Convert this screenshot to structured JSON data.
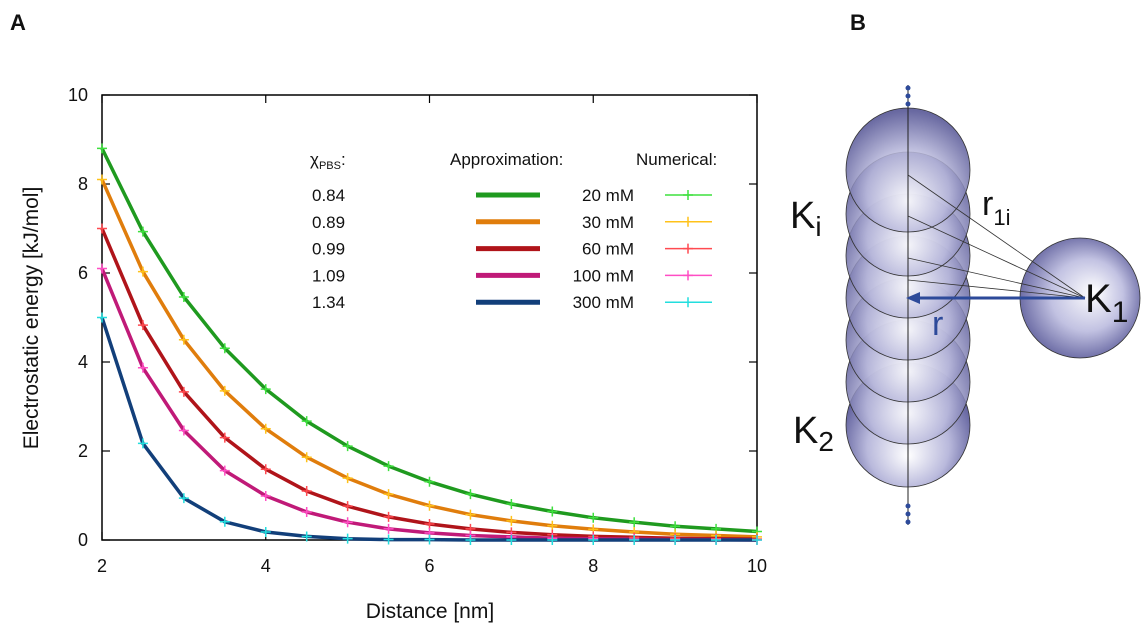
{
  "panel_labels": [
    "A",
    "B"
  ],
  "chart_data": {
    "type": "line",
    "x_label": "Distance [nm]",
    "y_label": "Electrostatic energy [kJ/mol]",
    "xlim": [
      2,
      10
    ],
    "xticks": [
      2,
      4,
      6,
      8,
      10
    ],
    "ylim": [
      0,
      10
    ],
    "yticks": [
      0,
      2,
      4,
      6,
      8,
      10
    ],
    "chi": {
      "symbol": "χ",
      "subscript": "PBS",
      "suffix": ":",
      "values": [
        0.84,
        0.89,
        0.99,
        1.09,
        1.34
      ]
    },
    "legend_title": "Approximation:",
    "x": [
      2,
      2.5,
      3,
      3.5,
      4,
      4.5,
      5,
      5.5,
      6,
      6.5,
      7,
      7.5,
      8,
      8.5,
      9,
      9.5,
      10
    ],
    "series": [
      {
        "name": "20 mM",
        "color": "#1f9a1f",
        "values": [
          8.8,
          6.93,
          5.46,
          4.31,
          3.39,
          2.67,
          2.11,
          1.66,
          1.31,
          1.03,
          0.81,
          0.64,
          0.5,
          0.4,
          0.31,
          0.25,
          0.19
        ]
      },
      {
        "name": "30 mM",
        "color": "#e07d0c",
        "values": [
          8.1,
          6.03,
          4.5,
          3.35,
          2.5,
          1.86,
          1.39,
          1.03,
          0.77,
          0.57,
          0.43,
          0.32,
          0.24,
          0.18,
          0.13,
          0.1,
          0.07
        ]
      },
      {
        "name": "60 mM",
        "color": "#b0141a",
        "values": [
          7.0,
          4.83,
          3.33,
          2.3,
          1.59,
          1.1,
          0.76,
          0.52,
          0.36,
          0.25,
          0.17,
          0.12,
          0.08,
          0.06,
          0.04,
          0.03,
          0.02
        ]
      },
      {
        "name": "100 mM",
        "color": "#c01a78",
        "values": [
          6.1,
          3.87,
          2.46,
          1.56,
          0.99,
          0.63,
          0.4,
          0.25,
          0.16,
          0.1,
          0.07,
          0.04,
          0.03,
          0.02,
          0.01,
          0.01,
          0
        ]
      },
      {
        "name": "300 mM",
        "color": "#123f7a",
        "values": [
          5.0,
          2.17,
          0.94,
          0.41,
          0.18,
          0.08,
          0.03,
          0.01,
          0.01,
          0,
          0,
          0,
          0,
          0,
          0,
          0,
          0
        ]
      }
    ],
    "numerical": {
      "title": "Numerical:",
      "series": [
        {
          "color": "#3ee03e",
          "values": [
            8.8,
            6.93,
            5.46,
            4.31,
            3.39,
            2.67,
            2.11,
            1.66,
            1.31,
            1.03,
            0.81,
            0.64,
            0.5,
            0.4,
            0.31,
            0.25,
            0.19
          ]
        },
        {
          "color": "#ffc21a",
          "values": [
            8.1,
            6.03,
            4.5,
            3.35,
            2.5,
            1.86,
            1.39,
            1.03,
            0.77,
            0.57,
            0.43,
            0.32,
            0.24,
            0.18,
            0.13,
            0.1,
            0.07
          ]
        },
        {
          "color": "#ff4a50",
          "values": [
            7.0,
            4.83,
            3.33,
            2.3,
            1.59,
            1.1,
            0.76,
            0.52,
            0.36,
            0.25,
            0.17,
            0.12,
            0.08,
            0.06,
            0.04,
            0.03,
            0.02
          ]
        },
        {
          "color": "#ff4ec4",
          "values": [
            6.1,
            3.87,
            2.46,
            1.56,
            0.99,
            0.63,
            0.4,
            0.25,
            0.16,
            0.1,
            0.07,
            0.04,
            0.03,
            0.02,
            0.01,
            0.01,
            0
          ]
        },
        {
          "color": "#22dede",
          "values": [
            5.0,
            2.17,
            0.94,
            0.41,
            0.18,
            0.08,
            0.03,
            0.01,
            0.01,
            0,
            0,
            0,
            0,
            0,
            0,
            0,
            0
          ]
        }
      ]
    }
  },
  "diagram": {
    "k_i": {
      "text": "K",
      "sub": "i"
    },
    "r_1i": {
      "text": "r",
      "sub": "1i"
    },
    "k_1": {
      "text": "K",
      "sub": "1"
    },
    "k_2": {
      "text": "K",
      "sub": "2"
    },
    "r": "r"
  }
}
